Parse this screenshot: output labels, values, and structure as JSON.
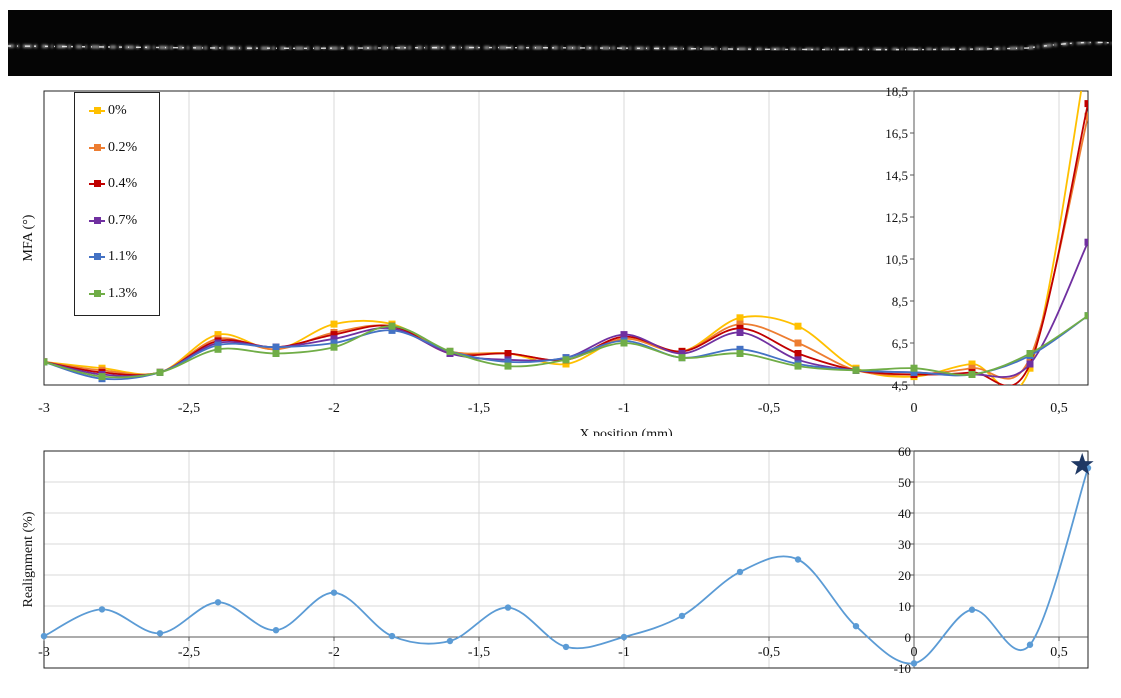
{
  "chart_data": [
    {
      "type": "line",
      "title": "",
      "xlabel": "X position  (mm)",
      "ylabel": "MFA (°)",
      "xlim": [
        -3,
        0.6
      ],
      "ylim": [
        4.5,
        18.5
      ],
      "x_ticks": [
        "-3",
        "-2,5",
        "-2",
        "-1,5",
        "-1",
        "-0,5",
        "0",
        "0,5"
      ],
      "x_tick_values": [
        -3,
        -2.5,
        -2,
        -1.5,
        -1,
        -0.5,
        0,
        0.5
      ],
      "y_ticks": [
        "4,5",
        "6,5",
        "8,5",
        "10,5",
        "12,5",
        "14,5",
        "16,5",
        "18,5"
      ],
      "y_tick_values": [
        4.5,
        6.5,
        8.5,
        10.5,
        12.5,
        14.5,
        16.5,
        18.5
      ],
      "y_axis_position": "at x = 0",
      "grid": "vertical",
      "legend": "top-left",
      "x": [
        -3,
        -2.8,
        -2.6,
        -2.4,
        -2.2,
        -2,
        -1.8,
        -1.6,
        -1.4,
        -1.2,
        -1,
        -0.8,
        -0.6,
        -0.4,
        -0.2,
        0,
        0.2,
        0.4,
        0.6
      ],
      "series": [
        {
          "name": "0%",
          "color": "#ffc000",
          "values": [
            5.6,
            5.3,
            5.1,
            6.9,
            6.2,
            7.4,
            7.4,
            6.1,
            6.0,
            5.5,
            6.7,
            6.1,
            7.7,
            7.3,
            5.3,
            4.9,
            5.5,
            5.3,
            20.5
          ]
        },
        {
          "name": "0.2%",
          "color": "#ed7d31",
          "values": [
            5.6,
            5.2,
            5.1,
            6.7,
            6.2,
            7.0,
            7.3,
            6.1,
            6.0,
            5.7,
            6.7,
            6.1,
            7.4,
            6.5,
            5.2,
            5.0,
            5.3,
            5.8,
            17.3
          ]
        },
        {
          "name": "0.4%",
          "color": "#c00000",
          "values": [
            5.6,
            5.1,
            5.1,
            6.6,
            6.3,
            6.9,
            7.3,
            6.0,
            6.0,
            5.7,
            6.8,
            6.1,
            7.2,
            6.0,
            5.2,
            5.0,
            5.1,
            5.5,
            17.9
          ]
        },
        {
          "name": "0.7%",
          "color": "#7030a0",
          "values": [
            5.6,
            5.0,
            5.1,
            6.5,
            6.3,
            6.7,
            7.2,
            6.0,
            5.7,
            5.8,
            6.9,
            6.0,
            7.0,
            5.7,
            5.2,
            5.1,
            5.0,
            5.5,
            11.3
          ]
        },
        {
          "name": "1.1%",
          "color": "#4472c4",
          "values": [
            5.6,
            4.8,
            5.1,
            6.4,
            6.3,
            6.5,
            7.1,
            6.1,
            5.6,
            5.8,
            6.6,
            5.8,
            6.2,
            5.5,
            5.2,
            5.1,
            5.0,
            5.9,
            7.8
          ]
        },
        {
          "name": "1.3%",
          "color": "#70ad47",
          "values": [
            5.6,
            4.9,
            5.1,
            6.2,
            6.0,
            6.3,
            7.3,
            6.1,
            5.4,
            5.7,
            6.5,
            5.8,
            6.0,
            5.4,
            5.2,
            5.3,
            5.0,
            6.0,
            7.8
          ]
        }
      ]
    },
    {
      "type": "line",
      "title": "",
      "xlabel": "",
      "ylabel": "Realignment  (%)",
      "xlim": [
        -3,
        0.6
      ],
      "ylim": [
        -10,
        60
      ],
      "x_ticks": [
        "-3",
        "-2,5",
        "-2",
        "-1,5",
        "-1",
        "-0,5",
        "0",
        "0,5"
      ],
      "x_tick_values": [
        -3,
        -2.5,
        -2,
        -1.5,
        -1,
        -0.5,
        0,
        0.5
      ],
      "y_ticks": [
        "-10",
        "0",
        "10",
        "20",
        "30",
        "40",
        "50",
        "60"
      ],
      "y_tick_values": [
        -10,
        0,
        10,
        20,
        30,
        40,
        50,
        60
      ],
      "y_axis_position": "at x = 0",
      "grid": "both",
      "legend": "none",
      "series": [
        {
          "color": "#5b9bd5",
          "x": [
            -3,
            -2.8,
            -2.6,
            -2.4,
            -2.2,
            -2,
            -1.8,
            -1.6,
            -1.4,
            -1.2,
            -1,
            -0.8,
            -0.6,
            -0.4,
            -0.2,
            0,
            0.2,
            0.4,
            0.6
          ],
          "values": [
            0.3,
            8.9,
            1.2,
            11.2,
            2.2,
            14.3,
            0.3,
            -1.3,
            9.5,
            -3.2,
            0,
            6.8,
            21,
            25,
            3.5,
            -8.5,
            8.8,
            -2.5,
            54.5
          ]
        }
      ],
      "marker": {
        "symbol": "star",
        "color": "#1f3864",
        "x": 0.58,
        "y": 55.5
      }
    }
  ],
  "colors": {
    "axis": "#595959",
    "grid": "#d9d9d9",
    "frame": "#222222",
    "fiber_background": "#050505"
  }
}
